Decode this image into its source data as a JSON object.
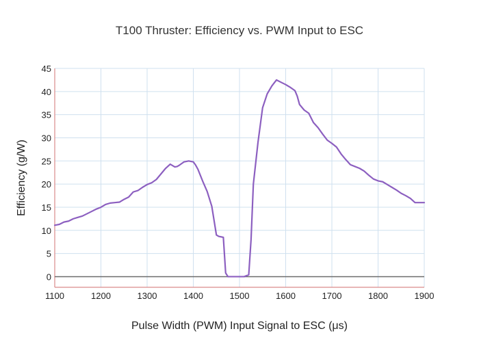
{
  "chart_data": {
    "type": "line",
    "title": "T100 Thruster: Efficiency vs. PWM Input to ESC",
    "xlabel": "Pulse Width (PWM) Input Signal to ESC (μs)",
    "ylabel": "Efficiency (g/W)",
    "xlim": [
      1100,
      1900
    ],
    "ylim": [
      -2.3,
      45
    ],
    "xticks": [
      1100,
      1200,
      1300,
      1400,
      1500,
      1600,
      1700,
      1800,
      1900
    ],
    "yticks": [
      0,
      5,
      10,
      15,
      20,
      25,
      30,
      35,
      40,
      45
    ],
    "grid": true,
    "colors": {
      "series": "#8c5fc0",
      "grid": "#cfe0ef",
      "zero_line": "#6b6b6b",
      "frame": "#d98a8a"
    },
    "series": [
      {
        "x": [
          1100,
          1110,
          1120,
          1130,
          1140,
          1150,
          1160,
          1170,
          1180,
          1190,
          1200,
          1210,
          1220,
          1230,
          1240,
          1250,
          1260,
          1270,
          1280,
          1290,
          1300,
          1310,
          1320,
          1330,
          1340,
          1350,
          1360,
          1365,
          1370,
          1380,
          1390,
          1400,
          1405,
          1410,
          1420,
          1430,
          1440,
          1450,
          1455,
          1460,
          1465,
          1470,
          1475,
          1480,
          1490,
          1500,
          1510,
          1520,
          1525,
          1530,
          1540,
          1550,
          1560,
          1570,
          1580,
          1590,
          1600,
          1610,
          1620,
          1625,
          1630,
          1640,
          1650,
          1660,
          1670,
          1680,
          1690,
          1700,
          1710,
          1720,
          1730,
          1740,
          1750,
          1760,
          1770,
          1780,
          1790,
          1800,
          1810,
          1820,
          1830,
          1840,
          1850,
          1860,
          1870,
          1880,
          1890,
          1900
        ],
        "y": [
          11.1,
          11.3,
          11.8,
          12.0,
          12.5,
          12.8,
          13.1,
          13.6,
          14.1,
          14.6,
          15.0,
          15.6,
          15.9,
          16.0,
          16.1,
          16.7,
          17.2,
          18.3,
          18.6,
          19.3,
          19.9,
          20.3,
          21.0,
          22.2,
          23.4,
          24.3,
          23.7,
          23.8,
          24.1,
          24.8,
          25.0,
          24.8,
          24.1,
          23.2,
          20.7,
          18.4,
          15.2,
          9.0,
          8.7,
          8.6,
          8.5,
          0.8,
          0.0,
          0.0,
          0.0,
          0.0,
          0.0,
          0.4,
          8.0,
          20.0,
          29.0,
          36.5,
          39.5,
          41.2,
          42.5,
          42.0,
          41.5,
          40.9,
          40.2,
          39.0,
          37.2,
          36.0,
          35.3,
          33.3,
          32.2,
          30.8,
          29.5,
          28.8,
          28.0,
          26.5,
          25.3,
          24.2,
          23.8,
          23.4,
          22.8,
          21.9,
          21.1,
          20.7,
          20.5,
          19.9,
          19.3,
          18.7,
          18.0,
          17.5,
          16.9,
          16.0,
          16.0,
          16.0
        ]
      }
    ]
  }
}
